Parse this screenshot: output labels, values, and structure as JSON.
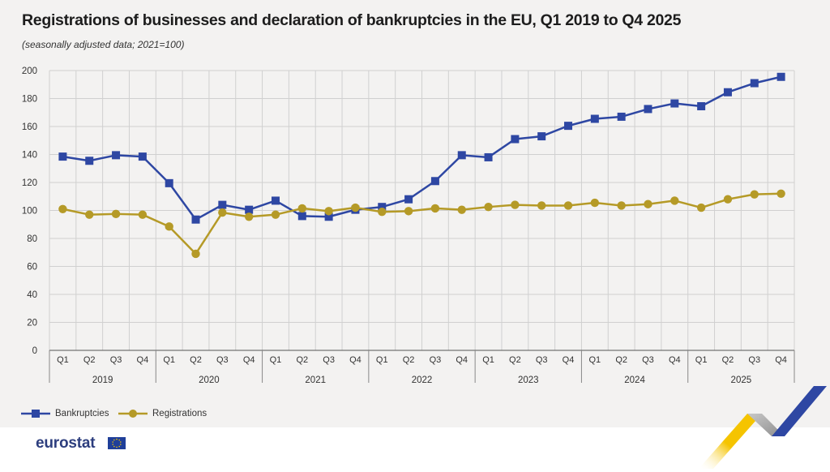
{
  "title": "Registrations of businesses and declaration of bankruptcies in the EU, Q1 2019 to Q4 2025",
  "subtitle": "(seasonally adjusted data; 2021=100)",
  "colors": {
    "bankruptcies": "#2e47a3",
    "registrations": "#b59a27",
    "grid": "#d0d0d0",
    "background": "#f3f2f1",
    "axis": "#555555",
    "brand_blue": "#2d3e7e",
    "brand_yellow": "#f5c400"
  },
  "brand": {
    "wordmark": "eurostat",
    "flag_icon": "eu-flag-icon"
  },
  "chart_data": {
    "type": "line",
    "quarter_labels": [
      "Q1",
      "Q2",
      "Q3",
      "Q4",
      "Q1",
      "Q2",
      "Q3",
      "Q4",
      "Q1",
      "Q2",
      "Q3",
      "Q4",
      "Q1",
      "Q2",
      "Q3",
      "Q4",
      "Q1",
      "Q2",
      "Q3",
      "Q4",
      "Q1",
      "Q2",
      "Q3",
      "Q4",
      "Q1",
      "Q2",
      "Q3",
      "Q4"
    ],
    "year_labels": [
      "2019",
      "2020",
      "2021",
      "2022",
      "2023",
      "2024",
      "2025"
    ],
    "ylim": [
      0,
      200
    ],
    "yticks": [
      0,
      20,
      40,
      60,
      80,
      100,
      120,
      140,
      160,
      180,
      200
    ],
    "grid": true,
    "legend_position": "bottom-left",
    "series": [
      {
        "name": "Bankruptcies",
        "marker": "square",
        "values": [
          138.5,
          135.5,
          139.5,
          138.5,
          119.5,
          93.5,
          104,
          100.5,
          107,
          96,
          95.5,
          100.5,
          102.5,
          108,
          121,
          139.5,
          138,
          151,
          153,
          160.5,
          165.5,
          167,
          172.5,
          176.5,
          174.5,
          184.5,
          191,
          195.5
        ]
      },
      {
        "name": "Registrations",
        "marker": "circle",
        "values": [
          101,
          97,
          97.5,
          97,
          88.5,
          69,
          98.5,
          95.5,
          97,
          101.5,
          99.5,
          102,
          99,
          99.5,
          101.5,
          100.5,
          102.5,
          104,
          103.5,
          103.5,
          105.5,
          103.5,
          104.5,
          107,
          102,
          108,
          111.5,
          112
        ]
      }
    ]
  }
}
